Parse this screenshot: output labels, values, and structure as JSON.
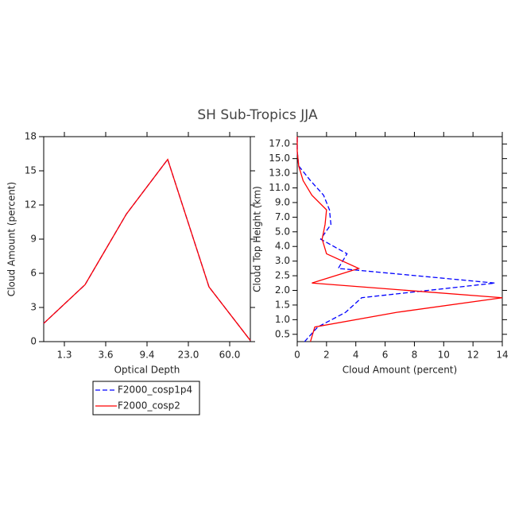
{
  "title": "SH Sub-Tropics JJA",
  "chart_data": [
    {
      "type": "line",
      "xlabel": "Optical Depth",
      "ylabel": "Cloud Amount (percent)",
      "x": [
        0,
        1,
        2,
        3,
        4,
        5
      ],
      "xlim": [
        0,
        5
      ],
      "xticks": [
        {
          "value": 0.5,
          "label": "1.3"
        },
        {
          "value": 1.5,
          "label": "3.6"
        },
        {
          "value": 2.5,
          "label": "9.4"
        },
        {
          "value": 3.5,
          "label": "23.0"
        },
        {
          "value": 4.5,
          "label": "60.0"
        }
      ],
      "ylim": [
        0,
        18
      ],
      "yticks": [
        0,
        3,
        6,
        9,
        12,
        15,
        18
      ],
      "series": [
        {
          "name": "F2000_cosp1p4",
          "color": "#0000ff",
          "dash": true,
          "values": [
            1.6,
            5.0,
            11.2,
            16.0,
            4.8,
            0.1
          ]
        },
        {
          "name": "F2000_cosp2",
          "color": "#ff0000",
          "dash": false,
          "values": [
            1.6,
            5.0,
            11.2,
            16.0,
            4.8,
            0.1
          ]
        }
      ]
    },
    {
      "type": "line",
      "xlabel": "Cloud Amount (percent)",
      "ylabel": "Cloud Top Height (km)",
      "y": [
        0,
        1,
        2,
        3,
        4,
        5,
        6,
        7,
        8,
        9,
        10,
        11,
        12,
        13,
        14
      ],
      "ylim": [
        0,
        14
      ],
      "yticks": [
        {
          "value": 0.5,
          "label": "0.5"
        },
        {
          "value": 1.5,
          "label": "1.0"
        },
        {
          "value": 2.5,
          "label": "1.5"
        },
        {
          "value": 3.5,
          "label": "2.0"
        },
        {
          "value": 4.5,
          "label": "2.5"
        },
        {
          "value": 5.5,
          "label": "3.0"
        },
        {
          "value": 6.5,
          "label": "4.0"
        },
        {
          "value": 7.5,
          "label": "5.0"
        },
        {
          "value": 8.5,
          "label": "7.0"
        },
        {
          "value": 9.5,
          "label": "9.0"
        },
        {
          "value": 10.5,
          "label": "11.0"
        },
        {
          "value": 11.5,
          "label": "13.0"
        },
        {
          "value": 12.5,
          "label": "15.0"
        },
        {
          "value": 13.5,
          "label": "17.0"
        }
      ],
      "xlim": [
        0,
        14
      ],
      "xticks": [
        0,
        2,
        4,
        6,
        8,
        10,
        12,
        14
      ],
      "series": [
        {
          "name": "F2000_cosp1p4",
          "color": "#0000ff",
          "dash": true,
          "values": [
            0.5,
            1.4,
            3.3,
            4.4,
            13.5,
            2.8,
            3.4,
            1.6,
            2.3,
            2.2,
            1.8,
            0.9,
            0.1,
            0,
            0
          ]
        },
        {
          "name": "F2000_cosp2",
          "color": "#ff0000",
          "dash": false,
          "values": [
            0.9,
            1.2,
            6.8,
            14.0,
            1.0,
            4.2,
            2.0,
            1.7,
            1.9,
            2.0,
            1.0,
            0.4,
            0.1,
            0,
            0
          ]
        }
      ]
    }
  ]
}
